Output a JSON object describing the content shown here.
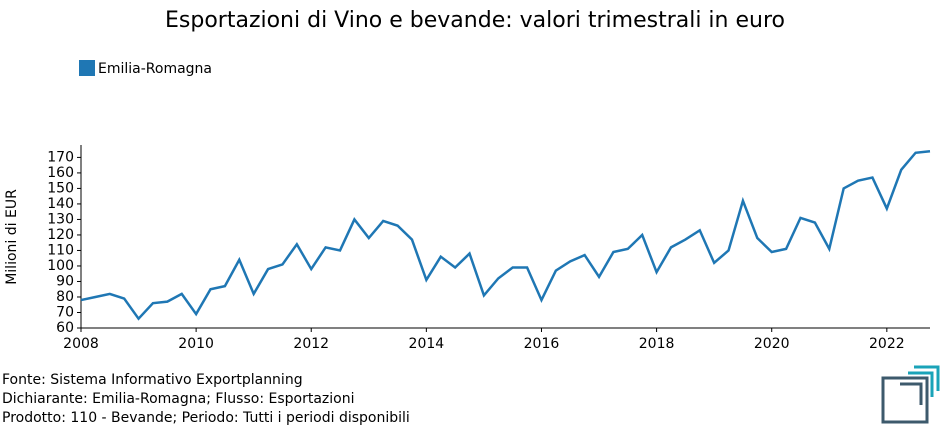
{
  "chart_data": {
    "type": "line",
    "title": "Esportazioni di Vino e bevande: valori trimestrali in euro",
    "y_label": "Milioni di EUR",
    "x": [
      2008,
      2008.25,
      2008.5,
      2008.75,
      2009,
      2009.25,
      2009.5,
      2009.75,
      2010,
      2010.25,
      2010.5,
      2010.75,
      2011,
      2011.25,
      2011.5,
      2011.75,
      2012,
      2012.25,
      2012.5,
      2012.75,
      2013,
      2013.25,
      2013.5,
      2013.75,
      2014,
      2014.25,
      2014.5,
      2014.75,
      2015,
      2015.25,
      2015.5,
      2015.75,
      2016,
      2016.25,
      2016.5,
      2016.75,
      2017,
      2017.25,
      2017.5,
      2017.75,
      2018,
      2018.25,
      2018.5,
      2018.75,
      2019,
      2019.25,
      2019.5,
      2019.75,
      2020,
      2020.25,
      2020.5,
      2020.75,
      2021,
      2021.25,
      2021.5,
      2021.75,
      2022,
      2022.25,
      2022.5,
      2022.75
    ],
    "series": [
      {
        "name": "Emilia-Romagna",
        "color": "#1f77b4",
        "values": [
          78,
          80,
          82,
          79,
          66,
          76,
          77,
          82,
          69,
          85,
          87,
          104,
          82,
          98,
          101,
          114,
          98,
          112,
          110,
          130,
          118,
          129,
          126,
          117,
          91,
          106,
          99,
          108,
          81,
          92,
          99,
          99,
          78,
          97,
          103,
          107,
          93,
          109,
          111,
          120,
          96,
          112,
          117,
          123,
          102,
          110,
          142,
          118,
          109,
          111,
          131,
          128,
          111,
          150,
          155,
          157,
          137,
          162,
          173,
          174
        ]
      }
    ],
    "xlim": [
      2008,
      2022.75
    ],
    "xticks": [
      2008,
      2010,
      2012,
      2014,
      2016,
      2018,
      2020,
      2022
    ],
    "ylim": [
      60,
      178
    ],
    "yticks": [
      60,
      70,
      80,
      90,
      100,
      110,
      120,
      130,
      140,
      150,
      160,
      170
    ],
    "footer": [
      "Fonte: Sistema Informativo Exportplanning",
      "Dichiarante: Emilia-Romagna; Flusso: Esportazioni",
      "Prodotto: 110 - Bevande; Periodo: Tutti i periodi disponibili"
    ]
  }
}
